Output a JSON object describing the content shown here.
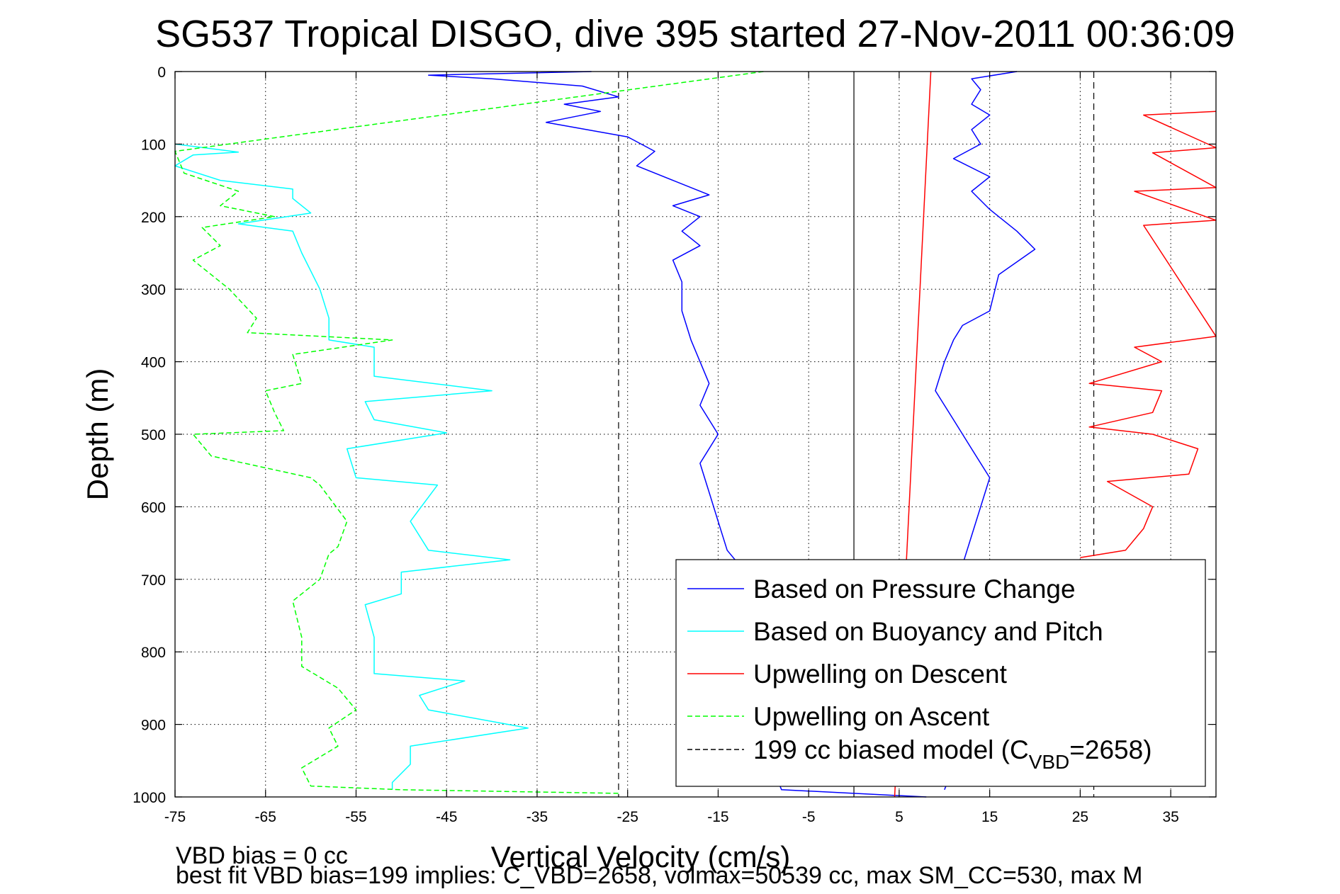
{
  "chart_data": {
    "type": "line",
    "title": "SG537 Tropical DISGO, dive 395 started 27-Nov-2011 00:36:09",
    "xlabel": "Vertical Velocity (cm/s)",
    "ylabel": "Depth (m)",
    "xlim": [
      -75,
      40
    ],
    "ylim": [
      0,
      1000
    ],
    "y_reversed": true,
    "grid": true,
    "xticks": [
      "-75",
      "-65",
      "-55",
      "-45",
      "-35",
      "-25",
      "-15",
      "-5",
      "5",
      "15",
      "25",
      "35"
    ],
    "yticks": [
      "0",
      "100",
      "200",
      "300",
      "400",
      "500",
      "600",
      "700",
      "800",
      "900",
      "1000"
    ],
    "legend_position": "lower-right",
    "zero_line": 0,
    "model_bias_lines": [
      -26,
      26.5
    ],
    "series": [
      {
        "name": "Based on Pressure Change",
        "color": "#0000ff",
        "style": "solid",
        "depth": [
          0,
          5,
          10,
          20,
          35,
          45,
          55,
          70,
          90,
          110,
          130,
          150,
          170,
          185,
          200,
          220,
          240,
          260,
          290,
          330,
          370,
          400,
          430,
          460,
          500,
          540,
          580,
          620,
          660,
          690,
          720,
          760,
          800,
          840,
          880,
          920,
          960,
          990,
          1000
        ],
        "x": [
          -29,
          -47,
          -40,
          -30,
          -26,
          -32,
          -28,
          -34,
          -25,
          -22,
          -24,
          -20,
          -16,
          -20,
          -17,
          -19,
          -17,
          -20,
          -19,
          -19,
          -18,
          -17,
          -16,
          -17,
          -15,
          -17,
          -16,
          -15,
          -14,
          -12,
          -9,
          -7,
          -6,
          -7,
          -6,
          -8,
          -9,
          -8,
          8
        ]
      },
      {
        "name": "Based on Pressure Change",
        "color": "#0000ff",
        "style": "solid",
        "depth": [
          0,
          10,
          25,
          45,
          60,
          80,
          100,
          120,
          145,
          165,
          190,
          220,
          245,
          280,
          330,
          350,
          370,
          400,
          440,
          480,
          520,
          560,
          600,
          640,
          680,
          720,
          760,
          800,
          840,
          880,
          920,
          960,
          990
        ],
        "x": [
          18,
          13,
          14,
          13,
          15,
          13,
          14,
          11,
          15,
          13,
          15,
          18,
          20,
          16,
          15,
          12,
          11,
          10,
          9,
          11,
          13,
          15,
          14,
          13,
          12,
          12,
          11,
          11,
          12,
          11,
          12,
          11,
          10
        ]
      },
      {
        "name": "Based on Buoyancy and Pitch",
        "color": "#00ffff",
        "style": "solid",
        "depth": [
          100,
          111,
          115,
          130,
          150,
          162,
          175,
          195,
          210,
          220,
          250,
          300,
          340,
          370,
          380,
          420,
          440,
          455,
          480,
          498,
          520,
          560,
          570,
          620,
          660,
          673,
          690,
          720,
          735,
          780,
          830,
          840,
          860,
          880,
          905,
          930,
          955,
          980,
          990
        ],
        "x": [
          -75,
          -68,
          -73,
          -75,
          -70,
          -62,
          -62,
          -60,
          -68,
          -62,
          -61,
          -59,
          -58,
          -58,
          -53,
          -53,
          -40,
          -54,
          -53,
          -45,
          -56,
          -55,
          -46,
          -49,
          -47,
          -38,
          -50,
          -50,
          -54,
          -53,
          -53,
          -43,
          -48,
          -47,
          -36,
          -49,
          -49,
          -51,
          -51
        ]
      },
      {
        "name": "Upwelling on Descent",
        "color": "#ff0000",
        "style": "solid",
        "depth": [
          0,
          1000
        ],
        "x": [
          8.5,
          4.5
        ]
      },
      {
        "name": "Upwelling on Descent",
        "color": "#ff0000",
        "style": "solid",
        "depth": [
          55,
          60,
          105,
          112,
          160,
          165,
          205,
          212,
          365,
          380,
          400,
          430,
          440,
          470,
          490,
          500,
          520,
          555,
          565,
          600,
          630,
          660,
          670
        ],
        "x": [
          40,
          32,
          40,
          33,
          40,
          31,
          40,
          32,
          40,
          31,
          34,
          26,
          34,
          33,
          26,
          33,
          38,
          37,
          28,
          33,
          32,
          30,
          25
        ]
      },
      {
        "name": "Upwelling on Ascent",
        "color": "#00ff00",
        "style": "dashed",
        "depth": [
          0,
          110,
          140,
          165,
          185,
          200,
          215,
          240,
          260,
          300,
          340,
          360,
          370,
          390,
          430,
          440,
          470,
          495,
          500,
          530,
          560,
          570,
          620,
          655,
          665,
          700,
          730,
          780,
          820,
          850,
          880,
          905,
          930,
          960,
          985,
          990,
          995
        ],
        "x": [
          -10,
          -75,
          -74,
          -68,
          -70,
          -64,
          -72,
          -70,
          -73,
          -69,
          -66,
          -67,
          -51,
          -62,
          -61,
          -65,
          -64,
          -63,
          -73,
          -71,
          -60,
          -59,
          -56,
          -57,
          -58,
          -59,
          -62,
          -61,
          -61,
          -57,
          -55,
          -58,
          -57,
          -61,
          -60,
          -50,
          -26
        ]
      }
    ],
    "legend": [
      "Based on Pressure Change",
      "Based on Buoyancy and Pitch",
      "Upwelling on Descent",
      "Upwelling on Ascent",
      "199 cc biased model (C"
    ],
    "legend_sub": "VBD",
    "legend_tail": "=2658)",
    "footnotes": [
      "VBD bias = 0 cc",
      "best fit VBD bias=199 implies: C_VBD=2658, volmax=50539 cc, max SM_CC=530, max M"
    ]
  }
}
